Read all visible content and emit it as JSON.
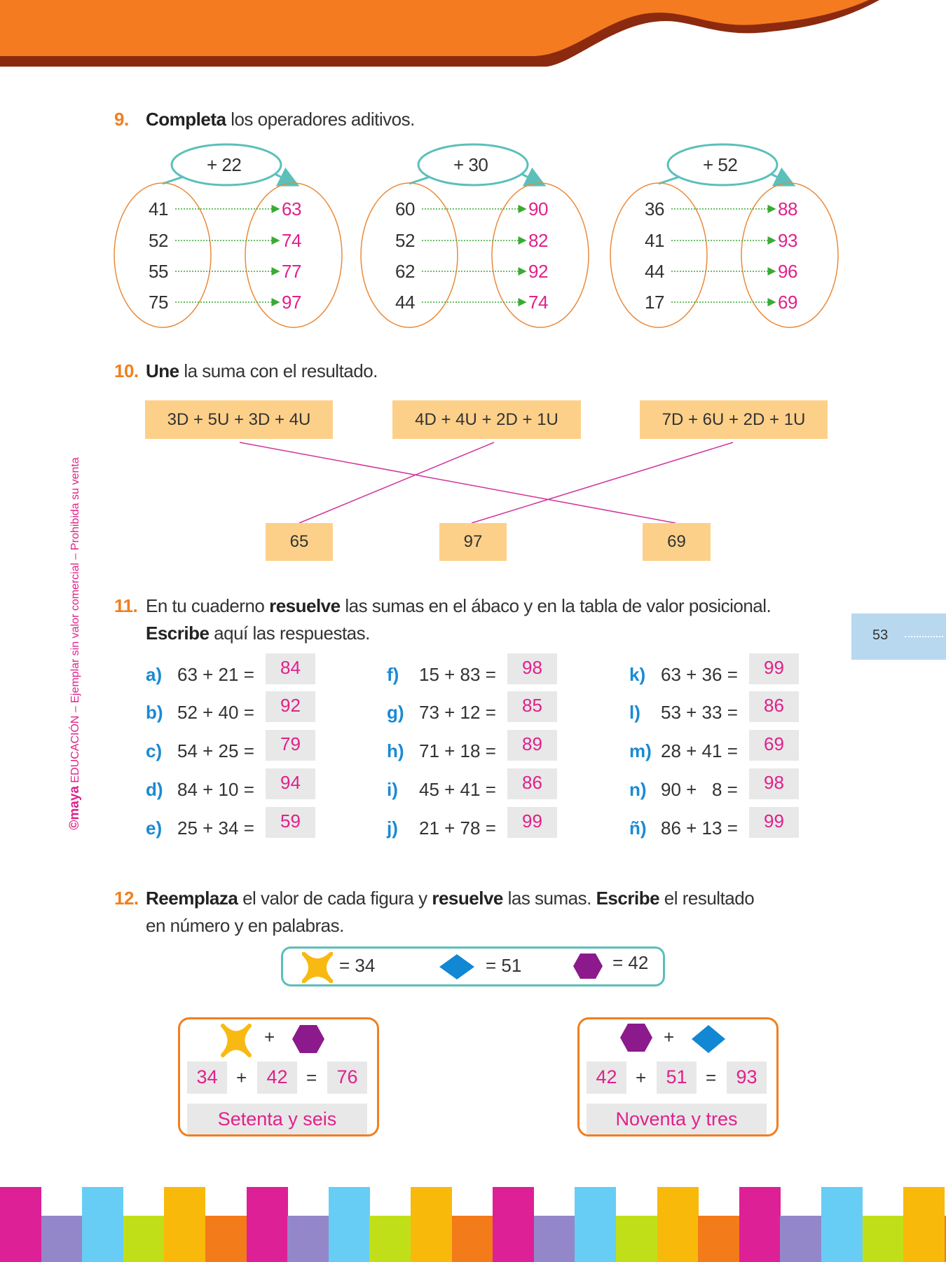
{
  "page_number": "53",
  "side_text": {
    "brand": "©maya",
    "text": "EDUCACIÓN – Ejemplar sin valor comercial – Prohibida su venta"
  },
  "colors": {
    "header_orange": "#f47b20",
    "header_dark": "#8b2a0e",
    "answer_pink": "#e0218a",
    "question_orange": "#f07f1f",
    "letter_blue": "#1a8ad4",
    "teal": "#5bbfba"
  },
  "q9": {
    "number": "9.",
    "bold": "Completa",
    "rest": " los operadores aditivos.",
    "groups": [
      {
        "operator": "+ 22",
        "inputs": [
          "41",
          "52",
          "55",
          "75"
        ],
        "outputs": [
          "63",
          "74",
          "77",
          "97"
        ]
      },
      {
        "operator": "+ 30",
        "inputs": [
          "60",
          "52",
          "62",
          "44"
        ],
        "outputs": [
          "90",
          "82",
          "92",
          "74"
        ]
      },
      {
        "operator": "+ 52",
        "inputs": [
          "36",
          "41",
          "44",
          "17"
        ],
        "outputs": [
          "88",
          "93",
          "96",
          "69"
        ]
      }
    ]
  },
  "q10": {
    "number": "10.",
    "bold": "Une",
    "rest": " la suma con el resultado.",
    "sums": [
      "3D + 5U + 3D + 4U",
      "4D + 4U + 2D + 1U",
      "7D + 6U + 2D + 1U"
    ],
    "results": [
      "65",
      "97",
      "69"
    ]
  },
  "q11": {
    "number": "11.",
    "line1_pre": "En tu cuaderno ",
    "line1_bold": "resuelve",
    "line1_rest": " las sumas en el ábaco y en la tabla de valor posicional.",
    "line2_bold": "Escribe",
    "line2_rest": " aquí las respuestas.",
    "items": [
      {
        "letter": "a)",
        "expr": "63 + 21 =",
        "answer": "84"
      },
      {
        "letter": "b)",
        "expr": "52 + 40 =",
        "answer": "92"
      },
      {
        "letter": "c)",
        "expr": "54 + 25 =",
        "answer": "79"
      },
      {
        "letter": "d)",
        "expr": "84 + 10 =",
        "answer": "94"
      },
      {
        "letter": "e)",
        "expr": "25 + 34 =",
        "answer": "59"
      },
      {
        "letter": "f)",
        "expr": "15 + 83 =",
        "answer": "98"
      },
      {
        "letter": "g)",
        "expr": "73 + 12 =",
        "answer": "85"
      },
      {
        "letter": "h)",
        "expr": "71 + 18 =",
        "answer": "89"
      },
      {
        "letter": "i)",
        "expr": "45 + 41 =",
        "answer": "86"
      },
      {
        "letter": "j)",
        "expr": "21 + 78 =",
        "answer": "99"
      },
      {
        "letter": "k)",
        "expr": "63 + 36 =",
        "answer": "99"
      },
      {
        "letter": "l)",
        "expr": "53 + 33 =",
        "answer": "86"
      },
      {
        "letter": "m)",
        "expr": "28 + 41 =",
        "answer": "69"
      },
      {
        "letter": "n)",
        "expr": "90 +   8 =",
        "answer": "98"
      },
      {
        "letter": "ñ)",
        "expr": "86 + 13 =",
        "answer": "99"
      }
    ]
  },
  "q12": {
    "number": "12.",
    "b1": "Reemplaza",
    "t1": " el valor de cada figura y ",
    "b2": "resuelve",
    "t2": " las sumas. ",
    "b3": "Escribe",
    "t3": " el resultado",
    "line2": "en número y en palabras.",
    "legend": [
      {
        "shape": "star-icon",
        "value": "= 34"
      },
      {
        "shape": "diamond-icon",
        "value": "= 51"
      },
      {
        "shape": "hexagon-icon",
        "value": "= 42"
      }
    ],
    "cards": [
      {
        "shapes": [
          "star-icon",
          "hexagon-icon"
        ],
        "plus": "+",
        "a": "34",
        "b": "42",
        "eq": "=",
        "sum": "76",
        "words": "Setenta y seis"
      },
      {
        "shapes": [
          "hexagon-icon",
          "diamond-icon"
        ],
        "plus": "+",
        "a": "42",
        "b": "51",
        "eq": "=",
        "sum": "93",
        "words": "Noventa y tres"
      }
    ]
  }
}
